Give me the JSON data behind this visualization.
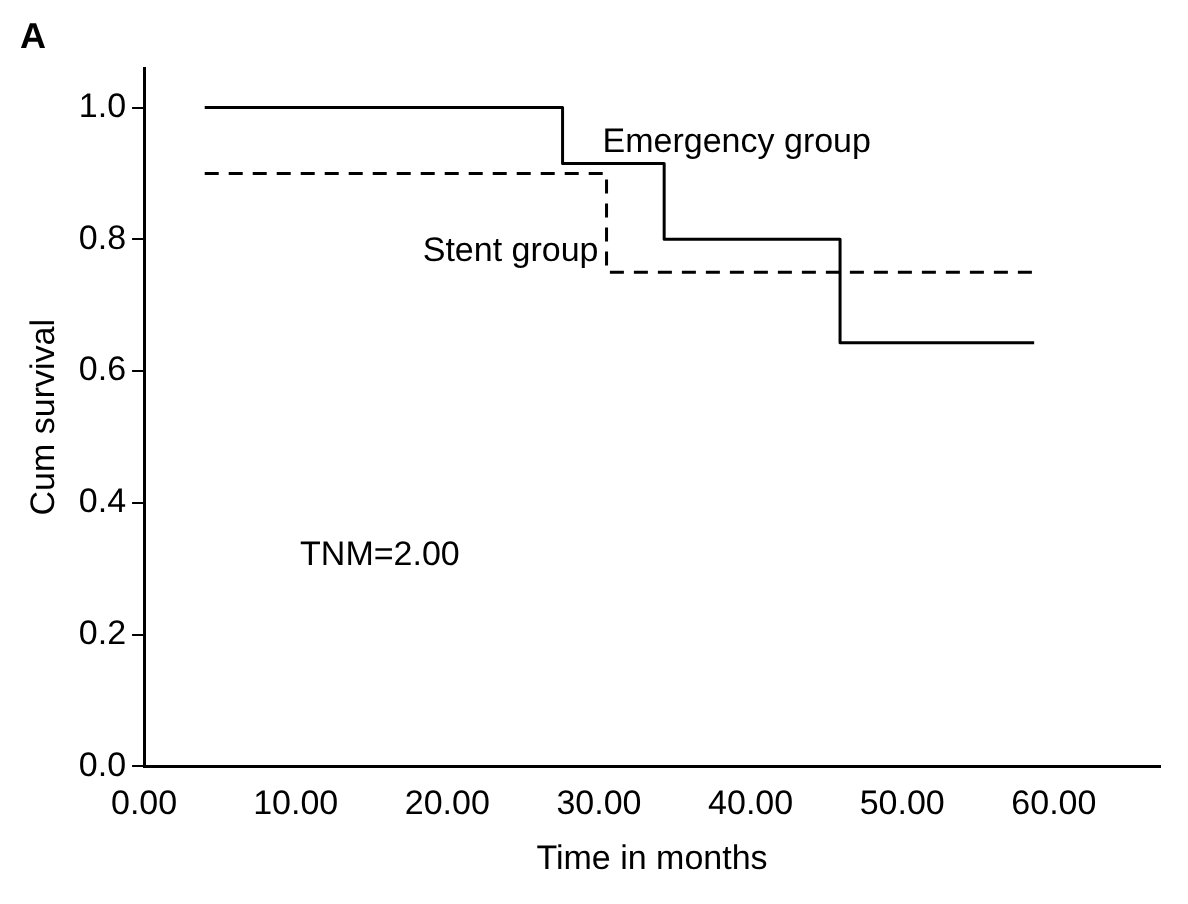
{
  "chart_data": {
    "type": "step",
    "title": "A",
    "xlabel": "Time in months",
    "ylabel": "Cum survival",
    "annotations": [
      "TNM=2.00"
    ],
    "series": [
      {
        "name": "Emergency group",
        "color": "#000000",
        "line_style": "solid",
        "x": [
          4.0,
          27.6,
          34.3,
          45.9,
          58.7
        ],
        "values": [
          1.0,
          0.915,
          0.8,
          0.643,
          0.643
        ]
      },
      {
        "name": "Stent group",
        "color": "#000000",
        "line_style": "dashed",
        "x": [
          4.0,
          30.5,
          58.8
        ],
        "values": [
          0.9,
          0.75,
          0.75
        ]
      }
    ],
    "xlim": [
      0,
      67
    ],
    "ylim": [
      0,
      1.06
    ],
    "xticks": [
      {
        "value": 0,
        "label": "0.00"
      },
      {
        "value": 10,
        "label": "10.00"
      },
      {
        "value": 20,
        "label": "20.00"
      },
      {
        "value": 30,
        "label": "30.00"
      },
      {
        "value": 40,
        "label": "40.00"
      },
      {
        "value": 50,
        "label": "50.00"
      },
      {
        "value": 60,
        "label": "60.00"
      }
    ],
    "yticks": [
      {
        "value": 0,
        "label": "0.0"
      },
      {
        "value": 0.2,
        "label": "0.2"
      },
      {
        "value": 0.4,
        "label": "0.4"
      },
      {
        "value": 0.6,
        "label": "0.6"
      },
      {
        "value": 0.8,
        "label": "0.8"
      },
      {
        "value": 1.0,
        "label": "1.0"
      }
    ],
    "grid": false,
    "legend": false
  }
}
